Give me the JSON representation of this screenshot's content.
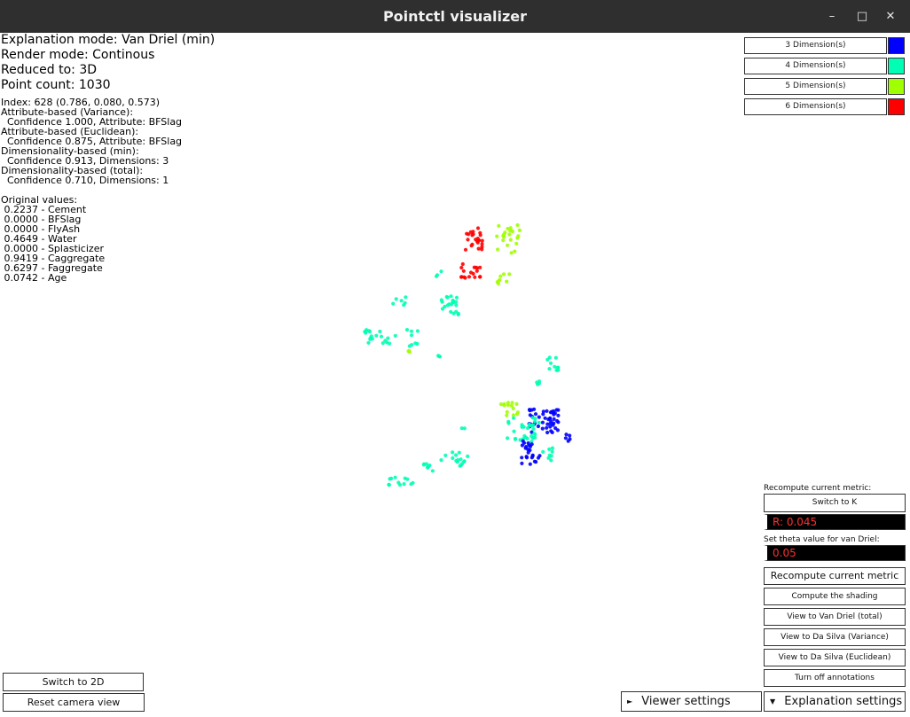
{
  "window": {
    "title": "Pointctl visualizer",
    "minimize_icon": "minimize-icon",
    "maximize_icon": "maximize-icon",
    "close_icon": "close-icon"
  },
  "info": {
    "explanation_mode": "Explanation mode: Van Driel (min)",
    "render_mode": "Render mode: Continous",
    "reduced_to": "Reduced to: 3D",
    "point_count": "Point count: 1030"
  },
  "details": [
    "Index: 628 (0.786, 0.080, 0.573)",
    "Attribute-based (Variance):",
    "  Confidence 1.000, Attribute: BFSlag",
    "Attribute-based (Euclidean):",
    "  Confidence 0.875, Attribute: BFSlag",
    "Dimensionality-based (min):",
    "  Confidence 0.913, Dimensions: 3",
    "Dimensionality-based (total):",
    "  Confidence 0.710, Dimensions: 1"
  ],
  "original_values": {
    "header": "Original values:",
    "rows": [
      " 0.2237 - Cement",
      " 0.0000 - BFSlag",
      " 0.0000 - FlyAsh",
      " 0.4649 - Water",
      " 0.0000 - Splasticizer",
      " 0.9419 - Caggregate",
      " 0.6297 - Faggregate",
      " 0.0742 - Age"
    ]
  },
  "legend": [
    {
      "label": "3 Dimension(s)",
      "color": "#0000ff"
    },
    {
      "label": "4 Dimension(s)",
      "color": "#00ffb4"
    },
    {
      "label": "5 Dimension(s)",
      "color": "#a0ff00"
    },
    {
      "label": "6 Dimension(s)",
      "color": "#ff0000"
    }
  ],
  "controls": {
    "recompute_label": "Recompute current metric:",
    "switch_to_k": "Switch to K",
    "r_value": "R: 0.045",
    "theta_label": "Set theta value for van Driel:",
    "theta_value": "0.05",
    "recompute_button": "Recompute current metric",
    "compute_shading": "Compute the shading",
    "view_van_driel": "View to Van Driel (total)",
    "view_da_silva_var": "View to Da Silva (Variance)",
    "view_da_silva_euc": "View to Da Silva (Euclidean)",
    "turn_off_annotations": "Turn off annotations"
  },
  "bottom": {
    "switch_2d": "Switch to 2D",
    "reset_camera": "Reset camera view",
    "viewer_settings": "Viewer settings",
    "explanation_settings": "Explanation settings",
    "viewer_icon": "triangle-right-icon",
    "explanation_icon": "triangle-down-icon"
  }
}
